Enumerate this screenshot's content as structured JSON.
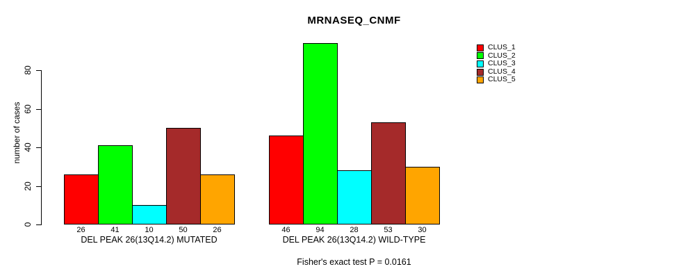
{
  "chart_data": {
    "type": "bar",
    "title": "MRNASEQ_CNMF",
    "xlabel": "",
    "ylabel": "number of cases",
    "ylim": [
      0,
      94
    ],
    "yticks": [
      0,
      20,
      40,
      60,
      80
    ],
    "grid": false,
    "categories": [
      "CLUS_1",
      "CLUS_2",
      "CLUS_3",
      "CLUS_4",
      "CLUS_5"
    ],
    "series_colors": [
      "#FF0000",
      "#00FF00",
      "#00FFFF",
      "#A52A2A",
      "#FFA500"
    ],
    "groups": [
      {
        "label": "DEL PEAK 26(13Q14.2) MUTATED",
        "values": [
          26,
          41,
          10,
          50,
          26
        ]
      },
      {
        "label": "DEL PEAK 26(13Q14.2) WILD-TYPE",
        "values": [
          46,
          94,
          28,
          53,
          30
        ]
      }
    ],
    "legend": {
      "position": "top-right",
      "entries": [
        {
          "label": "CLUS_1",
          "color": "#FF0000"
        },
        {
          "label": "CLUS_2",
          "color": "#00FF00"
        },
        {
          "label": "CLUS_3",
          "color": "#00FFFF"
        },
        {
          "label": "CLUS_4",
          "color": "#A52A2A"
        },
        {
          "label": "CLUS_5",
          "color": "#FFA500"
        }
      ]
    },
    "annotation": "Fisher's exact test P = 0.0161"
  }
}
